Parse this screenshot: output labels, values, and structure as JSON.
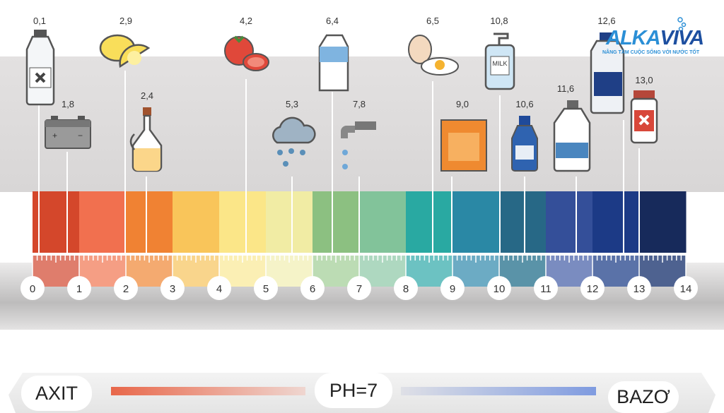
{
  "brand": {
    "name_part1": "ALKA",
    "name_part2": "VIVA",
    "tagline": "NÂNG TẦM CUỘC SỐNG VỚI NƯỚC TỐT"
  },
  "items": [
    {
      "value": "0,1",
      "icon": "poison-bottle-icon"
    },
    {
      "value": "1,8",
      "icon": "car-battery-icon"
    },
    {
      "value": "2,9",
      "icon": "lemon-icon"
    },
    {
      "value": "2,4",
      "icon": "vinegar-jar-icon"
    },
    {
      "value": "4,2",
      "icon": "tomato-icon"
    },
    {
      "value": "5,3",
      "icon": "rain-cloud-icon"
    },
    {
      "value": "6,4",
      "icon": "milk-carton-icon"
    },
    {
      "value": "7,8",
      "icon": "water-tap-icon"
    },
    {
      "value": "6,5",
      "icon": "egg-icon"
    },
    {
      "value": "9,0",
      "icon": "baking-soda-box-icon"
    },
    {
      "value": "10,8",
      "icon": "soap-pump-bottle-icon",
      "label": "MILK"
    },
    {
      "value": "10,6",
      "icon": "blue-bottle-icon"
    },
    {
      "value": "11,6",
      "icon": "bleach-jug-icon"
    },
    {
      "value": "12,6",
      "icon": "detergent-jug-icon"
    },
    {
      "value": "13,0",
      "icon": "drain-cleaner-icon"
    }
  ],
  "scale": {
    "min": 0,
    "max": 14,
    "labels": [
      "0",
      "1",
      "2",
      "3",
      "4",
      "5",
      "6",
      "7",
      "8",
      "9",
      "10",
      "11",
      "12",
      "13",
      "14"
    ],
    "colors": [
      "#d4472b",
      "#f1704f",
      "#f08233",
      "#f9c55a",
      "#fbe688",
      "#f1eca4",
      "#8cc081",
      "#82c39a",
      "#29a9a2",
      "#2a88a5",
      "#276886",
      "#344f99",
      "#1c3a86",
      "#172a5b"
    ],
    "light_colors": [
      "#df7d6c",
      "#f59e84",
      "#f4aa70",
      "#f9d58c",
      "#fbefb4",
      "#f5f3c8",
      "#bcdcb4",
      "#aed8c0",
      "#6cc2c2",
      "#6cabc4",
      "#5a93a8",
      "#7a8cc0",
      "#5a72a8",
      "#4e6290"
    ]
  },
  "footer": {
    "acid_label": "AXIT",
    "neutral_label": "PH=7",
    "base_label": "BAZƠ",
    "acid_color": "#e8674a",
    "base_color": "#7f9be0"
  }
}
